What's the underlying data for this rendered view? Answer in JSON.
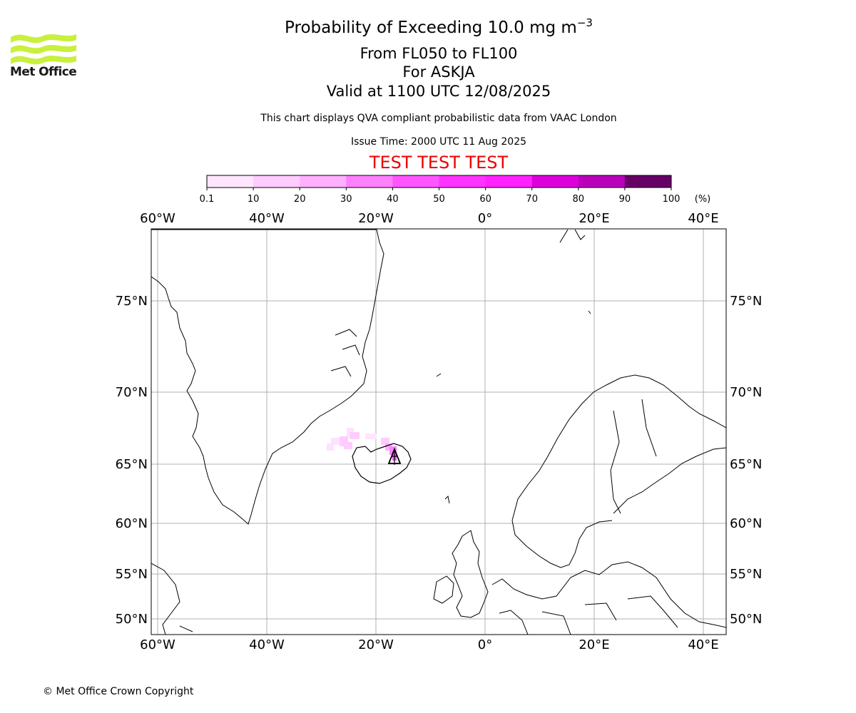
{
  "header": {
    "title": "Probability of Exceeding 10.0 mg m",
    "title_superscript": "−3",
    "level_range": "From FL050 to FL100",
    "volcano": "For ASKJA",
    "valid_time": "Valid at 1100 UTC 12/08/2025",
    "disclaimer": "This chart displays QVA compliant probabilistic data from VAAC London",
    "issue_time": "Issue Time: 2000 UTC 11 Aug 2025",
    "test_banner": "TEST TEST TEST"
  },
  "logo": {
    "text": "Met Office",
    "color": "#c8f03c"
  },
  "footer": {
    "copyright": "© Met Office Crown Copyright"
  },
  "colorbar": {
    "tick_labels": [
      "0.1",
      "10",
      "20",
      "30",
      "40",
      "50",
      "60",
      "70",
      "80",
      "90",
      "100"
    ],
    "unit": "(%)",
    "colors": [
      "#ffe6ff",
      "#ffccff",
      "#ffb0ff",
      "#ff80ff",
      "#ff55ff",
      "#ff33ff",
      "#ff22ff",
      "#dd00dd",
      "#bb00bb",
      "#990099",
      "#660066"
    ]
  },
  "map": {
    "lon_labels": [
      "60°W",
      "40°W",
      "20°W",
      "0°",
      "20°E",
      "40°E"
    ],
    "lat_labels": [
      "75°N",
      "70°N",
      "65°N",
      "60°N",
      "55°N",
      "50°N"
    ],
    "volcano_marker": "volcano-triangle",
    "ash_probability_max_pct": 40
  }
}
